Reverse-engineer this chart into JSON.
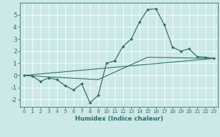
{
  "xlabel": "Humidex (Indice chaleur)",
  "bg_color": "#cce8e8",
  "line_color": "#2e6e68",
  "grid_color": "#ffffff",
  "ylim": [
    -2.6,
    6.0
  ],
  "xlim": [
    -0.5,
    23.5
  ],
  "yticks": [
    -2,
    -1,
    0,
    1,
    2,
    3,
    4,
    5
  ],
  "xticks": [
    0,
    1,
    2,
    3,
    4,
    5,
    6,
    7,
    8,
    9,
    10,
    11,
    12,
    13,
    14,
    15,
    16,
    17,
    18,
    19,
    20,
    21,
    22,
    23
  ],
  "line1_x": [
    0,
    1,
    2,
    3,
    4,
    5,
    6,
    7,
    8,
    9,
    10,
    11,
    12,
    13,
    14,
    15,
    16,
    17,
    18,
    19,
    20,
    21,
    22,
    23
  ],
  "line1_y": [
    0.0,
    -0.05,
    -0.5,
    -0.2,
    -0.35,
    -0.85,
    -1.2,
    -0.7,
    -2.25,
    -1.65,
    1.0,
    1.2,
    2.4,
    3.0,
    4.4,
    5.45,
    5.5,
    4.2,
    2.35,
    2.0,
    2.2,
    1.55,
    1.5,
    1.4
  ],
  "line2_x": [
    0,
    23
  ],
  "line2_y": [
    0.0,
    1.4
  ],
  "line3_x": [
    0,
    9,
    15,
    23
  ],
  "line3_y": [
    0.0,
    -0.35,
    1.5,
    1.4
  ]
}
